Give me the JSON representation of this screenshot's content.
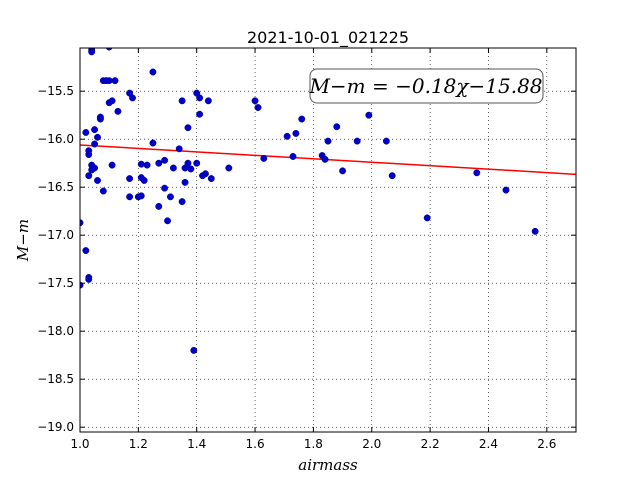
{
  "chart_data": {
    "type": "scatter",
    "title": "2021-10-01_021225",
    "xlabel": "airmass",
    "ylabel": "M−m",
    "xlim": [
      1.0,
      2.7
    ],
    "ylim": [
      -19.05,
      -15.05
    ],
    "y_inverted": false,
    "x_ticks": [
      1.0,
      1.2,
      1.4,
      1.6,
      1.8,
      2.0,
      2.2,
      2.4,
      2.6
    ],
    "x_tick_labels": [
      "1.0",
      "1.2",
      "1.4",
      "1.6",
      "1.8",
      "2.0",
      "2.2",
      "2.4",
      "2.6"
    ],
    "y_ticks": [
      -15.5,
      -16.0,
      -16.5,
      -17.0,
      -17.5,
      -18.0,
      -18.5,
      -19.0
    ],
    "y_tick_labels": [
      "−15.5",
      "−16.0",
      "−16.5",
      "−17.0",
      "−17.5",
      "−18.0",
      "−18.5",
      "−19.0"
    ],
    "grid": true,
    "grid_style": "dotted",
    "annotation": "M−m = −0.18χ−15.88",
    "fit_line": {
      "slope": -0.18,
      "intercept": -15.88,
      "x_range": [
        1.0,
        2.7
      ],
      "color": "#ff0000"
    },
    "marker_color": "#0000cc",
    "series": [
      {
        "points": [
          [
            1.0,
            -16.87
          ],
          [
            1.0,
            -17.52
          ],
          [
            1.02,
            -15.93
          ],
          [
            1.02,
            -17.16
          ],
          [
            1.03,
            -17.44
          ],
          [
            1.03,
            -17.46
          ],
          [
            1.03,
            -16.12
          ],
          [
            1.03,
            -16.16
          ],
          [
            1.03,
            -16.38
          ],
          [
            1.04,
            -16.27
          ],
          [
            1.04,
            -16.32
          ],
          [
            1.04,
            -15.07
          ],
          [
            1.04,
            -15.09
          ],
          [
            1.05,
            -16.05
          ],
          [
            1.05,
            -15.9
          ],
          [
            1.05,
            -16.3
          ],
          [
            1.06,
            -15.98
          ],
          [
            1.06,
            -16.43
          ],
          [
            1.07,
            -15.79
          ],
          [
            1.07,
            -15.77
          ],
          [
            1.08,
            -16.54
          ],
          [
            1.08,
            -15.39
          ],
          [
            1.09,
            -15.39
          ],
          [
            1.1,
            -15.39
          ],
          [
            1.1,
            -15.62
          ],
          [
            1.1,
            -15.04
          ],
          [
            1.11,
            -15.6
          ],
          [
            1.11,
            -16.27
          ],
          [
            1.12,
            -15.39
          ],
          [
            1.13,
            -15.71
          ],
          [
            1.17,
            -15.52
          ],
          [
            1.17,
            -16.41
          ],
          [
            1.17,
            -16.6
          ],
          [
            1.18,
            -15.57
          ],
          [
            1.2,
            -16.6
          ],
          [
            1.21,
            -16.26
          ],
          [
            1.21,
            -16.59
          ],
          [
            1.21,
            -16.4
          ],
          [
            1.22,
            -16.43
          ],
          [
            1.23,
            -16.27
          ],
          [
            1.25,
            -16.04
          ],
          [
            1.25,
            -15.3
          ],
          [
            1.27,
            -16.25
          ],
          [
            1.27,
            -16.7
          ],
          [
            1.29,
            -16.22
          ],
          [
            1.29,
            -16.51
          ],
          [
            1.3,
            -16.85
          ],
          [
            1.31,
            -16.6
          ],
          [
            1.32,
            -16.3
          ],
          [
            1.34,
            -16.1
          ],
          [
            1.35,
            -16.65
          ],
          [
            1.35,
            -15.6
          ],
          [
            1.36,
            -16.45
          ],
          [
            1.36,
            -16.3
          ],
          [
            1.37,
            -16.25
          ],
          [
            1.37,
            -15.88
          ],
          [
            1.38,
            -16.31
          ],
          [
            1.39,
            -18.2
          ],
          [
            1.4,
            -16.25
          ],
          [
            1.4,
            -15.52
          ],
          [
            1.41,
            -15.57
          ],
          [
            1.41,
            -15.74
          ],
          [
            1.42,
            -16.38
          ],
          [
            1.43,
            -16.36
          ],
          [
            1.44,
            -15.6
          ],
          [
            1.45,
            -16.41
          ],
          [
            1.51,
            -16.3
          ],
          [
            1.6,
            -15.6
          ],
          [
            1.61,
            -15.67
          ],
          [
            1.63,
            -16.2
          ],
          [
            1.71,
            -15.97
          ],
          [
            1.73,
            -16.18
          ],
          [
            1.74,
            -15.94
          ],
          [
            1.76,
            -15.79
          ],
          [
            1.83,
            -16.17
          ],
          [
            1.84,
            -16.21
          ],
          [
            1.85,
            -16.02
          ],
          [
            1.88,
            -15.87
          ],
          [
            1.9,
            -16.33
          ],
          [
            1.95,
            -16.02
          ],
          [
            1.99,
            -15.75
          ],
          [
            2.05,
            -16.02
          ],
          [
            2.07,
            -16.38
          ],
          [
            2.19,
            -16.82
          ],
          [
            2.36,
            -16.35
          ],
          [
            2.46,
            -16.53
          ],
          [
            2.56,
            -16.96
          ]
        ]
      }
    ]
  }
}
